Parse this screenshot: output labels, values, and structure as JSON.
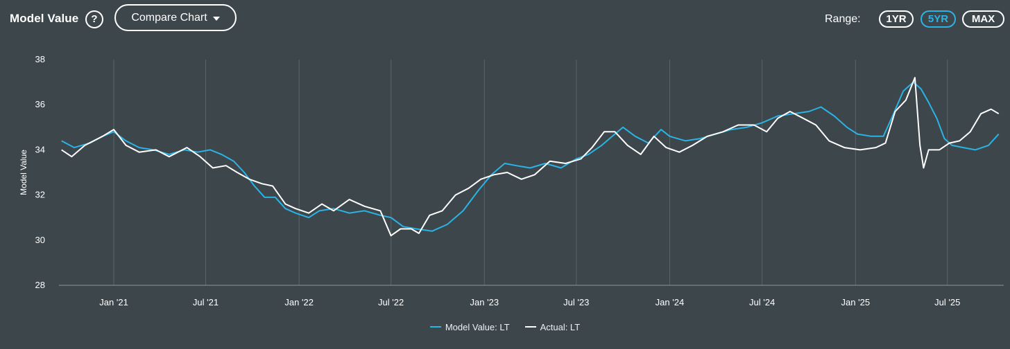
{
  "header": {
    "title": "Model Value",
    "help_icon": "question-circle-icon",
    "help_glyph": "?",
    "compare_label": "Compare Chart",
    "range_label": "Range:",
    "range_options": [
      "1YR",
      "5YR",
      "MAX"
    ],
    "range_selected": "5YR"
  },
  "colors": {
    "background": "#3d474b",
    "model": "#2bb3e6",
    "actual": "#ffffff",
    "grid": "#5a6569"
  },
  "chart_data": {
    "type": "line",
    "title": "",
    "xlabel": "",
    "ylabel": "Model Value",
    "ylim": [
      28,
      38
    ],
    "yticks": [
      28,
      30,
      32,
      34,
      36,
      38
    ],
    "xlim": [
      "2020-09-15",
      "2025-10-20"
    ],
    "xticks": [
      {
        "date": "2021-01-01",
        "label": "Jan '21"
      },
      {
        "date": "2021-07-01",
        "label": "Jul '21"
      },
      {
        "date": "2022-01-01",
        "label": "Jan '22"
      },
      {
        "date": "2022-07-01",
        "label": "Jul '22"
      },
      {
        "date": "2023-01-01",
        "label": "Jan '23"
      },
      {
        "date": "2023-07-01",
        "label": "Jul '23"
      },
      {
        "date": "2024-01-01",
        "label": "Jan '24"
      },
      {
        "date": "2024-07-01",
        "label": "Jul '24"
      },
      {
        "date": "2025-01-01",
        "label": "Jan '25"
      },
      {
        "date": "2025-07-01",
        "label": "Jul '25"
      }
    ],
    "grid": "vertical",
    "legend_position": "bottom-center",
    "series": [
      {
        "name": "Model Value: LT",
        "color": "#2bb3e6",
        "points": [
          [
            "2020-09-20",
            34.4
          ],
          [
            "2020-10-15",
            34.1
          ],
          [
            "2020-11-15",
            34.3
          ],
          [
            "2020-12-10",
            34.6
          ],
          [
            "2021-01-01",
            34.8
          ],
          [
            "2021-01-25",
            34.4
          ],
          [
            "2021-02-20",
            34.1
          ],
          [
            "2021-03-20",
            34.0
          ],
          [
            "2021-04-20",
            33.8
          ],
          [
            "2021-05-20",
            34.0
          ],
          [
            "2021-06-15",
            33.9
          ],
          [
            "2021-07-10",
            34.0
          ],
          [
            "2021-08-01",
            33.8
          ],
          [
            "2021-08-25",
            33.5
          ],
          [
            "2021-09-15",
            33.0
          ],
          [
            "2021-10-05",
            32.4
          ],
          [
            "2021-10-25",
            31.9
          ],
          [
            "2021-11-15",
            31.9
          ],
          [
            "2021-12-05",
            31.4
          ],
          [
            "2021-12-25",
            31.2
          ],
          [
            "2022-01-20",
            31.0
          ],
          [
            "2022-02-10",
            31.3
          ],
          [
            "2022-03-10",
            31.4
          ],
          [
            "2022-04-10",
            31.2
          ],
          [
            "2022-05-10",
            31.3
          ],
          [
            "2022-06-10",
            31.1
          ],
          [
            "2022-07-01",
            31.0
          ],
          [
            "2022-07-25",
            30.6
          ],
          [
            "2022-08-20",
            30.5
          ],
          [
            "2022-09-20",
            30.4
          ],
          [
            "2022-10-20",
            30.7
          ],
          [
            "2022-11-20",
            31.3
          ],
          [
            "2022-12-20",
            32.2
          ],
          [
            "2023-01-15",
            32.9
          ],
          [
            "2023-02-10",
            33.4
          ],
          [
            "2023-03-05",
            33.3
          ],
          [
            "2023-04-01",
            33.2
          ],
          [
            "2023-05-01",
            33.4
          ],
          [
            "2023-06-01",
            33.2
          ],
          [
            "2023-07-01",
            33.6
          ],
          [
            "2023-07-25",
            33.8
          ],
          [
            "2023-08-20",
            34.2
          ],
          [
            "2023-09-10",
            34.6
          ],
          [
            "2023-10-01",
            35.0
          ],
          [
            "2023-10-25",
            34.6
          ],
          [
            "2023-11-20",
            34.3
          ],
          [
            "2023-12-15",
            34.9
          ],
          [
            "2024-01-01",
            34.6
          ],
          [
            "2024-02-01",
            34.4
          ],
          [
            "2024-03-01",
            34.5
          ],
          [
            "2024-04-01",
            34.7
          ],
          [
            "2024-05-01",
            34.9
          ],
          [
            "2024-06-01",
            35.0
          ],
          [
            "2024-07-01",
            35.2
          ],
          [
            "2024-08-01",
            35.5
          ],
          [
            "2024-09-01",
            35.6
          ],
          [
            "2024-10-01",
            35.7
          ],
          [
            "2024-10-25",
            35.9
          ],
          [
            "2024-11-20",
            35.5
          ],
          [
            "2024-12-15",
            35.0
          ],
          [
            "2025-01-05",
            34.7
          ],
          [
            "2025-02-01",
            34.6
          ],
          [
            "2025-02-25",
            34.6
          ],
          [
            "2025-03-15",
            35.5
          ],
          [
            "2025-04-05",
            36.6
          ],
          [
            "2025-04-25",
            37.0
          ],
          [
            "2025-05-10",
            36.7
          ],
          [
            "2025-05-25",
            36.1
          ],
          [
            "2025-06-10",
            35.4
          ],
          [
            "2025-06-25",
            34.5
          ],
          [
            "2025-07-10",
            34.2
          ],
          [
            "2025-08-01",
            34.1
          ],
          [
            "2025-08-25",
            34.0
          ],
          [
            "2025-09-20",
            34.2
          ],
          [
            "2025-10-10",
            34.7
          ]
        ]
      },
      {
        "name": "Actual: LT",
        "color": "#ffffff",
        "points": [
          [
            "2020-09-20",
            34.0
          ],
          [
            "2020-10-10",
            33.7
          ],
          [
            "2020-11-05",
            34.2
          ],
          [
            "2020-12-10",
            34.6
          ],
          [
            "2021-01-01",
            34.9
          ],
          [
            "2021-01-25",
            34.2
          ],
          [
            "2021-02-20",
            33.9
          ],
          [
            "2021-03-25",
            34.0
          ],
          [
            "2021-04-20",
            33.7
          ],
          [
            "2021-05-25",
            34.1
          ],
          [
            "2021-06-20",
            33.7
          ],
          [
            "2021-07-15",
            33.2
          ],
          [
            "2021-08-10",
            33.3
          ],
          [
            "2021-09-01",
            33.0
          ],
          [
            "2021-09-25",
            32.7
          ],
          [
            "2021-10-20",
            32.5
          ],
          [
            "2021-11-10",
            32.4
          ],
          [
            "2021-12-05",
            31.6
          ],
          [
            "2021-12-25",
            31.4
          ],
          [
            "2022-01-20",
            31.2
          ],
          [
            "2022-02-15",
            31.6
          ],
          [
            "2022-03-10",
            31.3
          ],
          [
            "2022-04-10",
            31.8
          ],
          [
            "2022-05-10",
            31.5
          ],
          [
            "2022-06-10",
            31.3
          ],
          [
            "2022-07-01",
            30.2
          ],
          [
            "2022-07-20",
            30.5
          ],
          [
            "2022-08-10",
            30.5
          ],
          [
            "2022-08-25",
            30.3
          ],
          [
            "2022-09-15",
            31.1
          ],
          [
            "2022-10-10",
            31.3
          ],
          [
            "2022-11-05",
            32.0
          ],
          [
            "2022-12-01",
            32.3
          ],
          [
            "2022-12-25",
            32.7
          ],
          [
            "2023-01-20",
            32.9
          ],
          [
            "2023-02-15",
            33.0
          ],
          [
            "2023-03-15",
            32.7
          ],
          [
            "2023-04-10",
            32.9
          ],
          [
            "2023-05-10",
            33.5
          ],
          [
            "2023-06-10",
            33.4
          ],
          [
            "2023-07-10",
            33.6
          ],
          [
            "2023-08-01",
            34.1
          ],
          [
            "2023-08-25",
            34.8
          ],
          [
            "2023-09-15",
            34.8
          ],
          [
            "2023-10-10",
            34.2
          ],
          [
            "2023-11-05",
            33.8
          ],
          [
            "2023-12-01",
            34.6
          ],
          [
            "2023-12-25",
            34.1
          ],
          [
            "2024-01-20",
            33.9
          ],
          [
            "2024-02-15",
            34.2
          ],
          [
            "2024-03-15",
            34.6
          ],
          [
            "2024-04-15",
            34.8
          ],
          [
            "2024-05-15",
            35.1
          ],
          [
            "2024-06-15",
            35.1
          ],
          [
            "2024-07-10",
            34.8
          ],
          [
            "2024-08-01",
            35.4
          ],
          [
            "2024-08-25",
            35.7
          ],
          [
            "2024-09-20",
            35.4
          ],
          [
            "2024-10-15",
            35.1
          ],
          [
            "2024-11-10",
            34.4
          ],
          [
            "2024-12-10",
            34.1
          ],
          [
            "2025-01-10",
            34.0
          ],
          [
            "2025-02-10",
            34.1
          ],
          [
            "2025-03-01",
            34.3
          ],
          [
            "2025-03-20",
            35.7
          ],
          [
            "2025-04-10",
            36.2
          ],
          [
            "2025-04-28",
            37.2
          ],
          [
            "2025-05-08",
            34.2
          ],
          [
            "2025-05-15",
            33.2
          ],
          [
            "2025-05-25",
            34.0
          ],
          [
            "2025-06-15",
            34.0
          ],
          [
            "2025-07-05",
            34.3
          ],
          [
            "2025-07-25",
            34.4
          ],
          [
            "2025-08-15",
            34.8
          ],
          [
            "2025-09-05",
            35.6
          ],
          [
            "2025-09-25",
            35.8
          ],
          [
            "2025-10-10",
            35.6
          ]
        ]
      }
    ]
  }
}
